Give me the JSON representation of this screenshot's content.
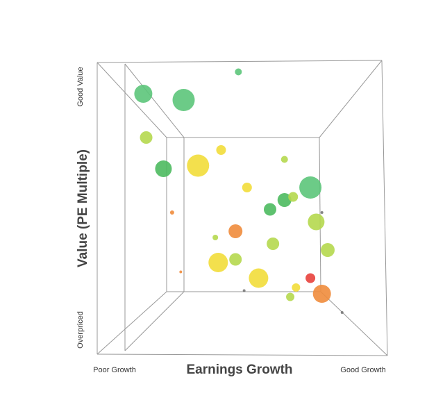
{
  "chart_data": {
    "type": "scatter",
    "x_label": "Earnings Growth",
    "y_label": "Value (PE Multiple)",
    "xlim": [
      0,
      100
    ],
    "ylim": [
      0,
      100
    ],
    "xticks": [
      {
        "value": 0,
        "label": "Poor Growth"
      },
      {
        "value": 100,
        "label": "Good Growth"
      }
    ],
    "yticks": [
      {
        "value": 0,
        "label": "Overpriced"
      },
      {
        "value": 100,
        "label": "Good Value"
      }
    ],
    "x": [
      49,
      16,
      30,
      17,
      43,
      23,
      35,
      65,
      74,
      52,
      65,
      60,
      68,
      26,
      78,
      76,
      48,
      41,
      61,
      80,
      48,
      42,
      29,
      56,
      74,
      69,
      51,
      67,
      78,
      85
    ],
    "y": [
      97,
      90,
      88,
      76,
      72,
      66,
      67,
      69,
      60,
      60,
      56,
      53,
      57,
      52,
      52,
      49,
      46,
      44,
      42,
      40,
      37,
      36,
      33,
      31,
      31,
      28,
      27,
      25,
      26,
      20
    ],
    "sizes": [
      5,
      13,
      16,
      9,
      7,
      12,
      16,
      5,
      16,
      7,
      10,
      9,
      7,
      3,
      2,
      12,
      10,
      4,
      9,
      10,
      9,
      14,
      2,
      14,
      7,
      6,
      2,
      6,
      13,
      2
    ],
    "colors": [
      "#5cc57a",
      "#5cc57a",
      "#5cc57a",
      "#b5d84e",
      "#f2dd3a",
      "#4cba5f",
      "#f2dd3a",
      "#b5d84e",
      "#5cc57a",
      "#f2dd3a",
      "#4cba5f",
      "#4cba5f",
      "#b5d84e",
      "#f08c3c",
      "#777777",
      "#b5d84e",
      "#f08c3c",
      "#b5d84e",
      "#b5d84e",
      "#b5d84e",
      "#b5d84e",
      "#f2dd3a",
      "#f08c3c",
      "#f2dd3a",
      "#e8413c",
      "#f2dd3a",
      "#777777",
      "#b5d84e",
      "#f08c3c",
      "#777777"
    ]
  }
}
